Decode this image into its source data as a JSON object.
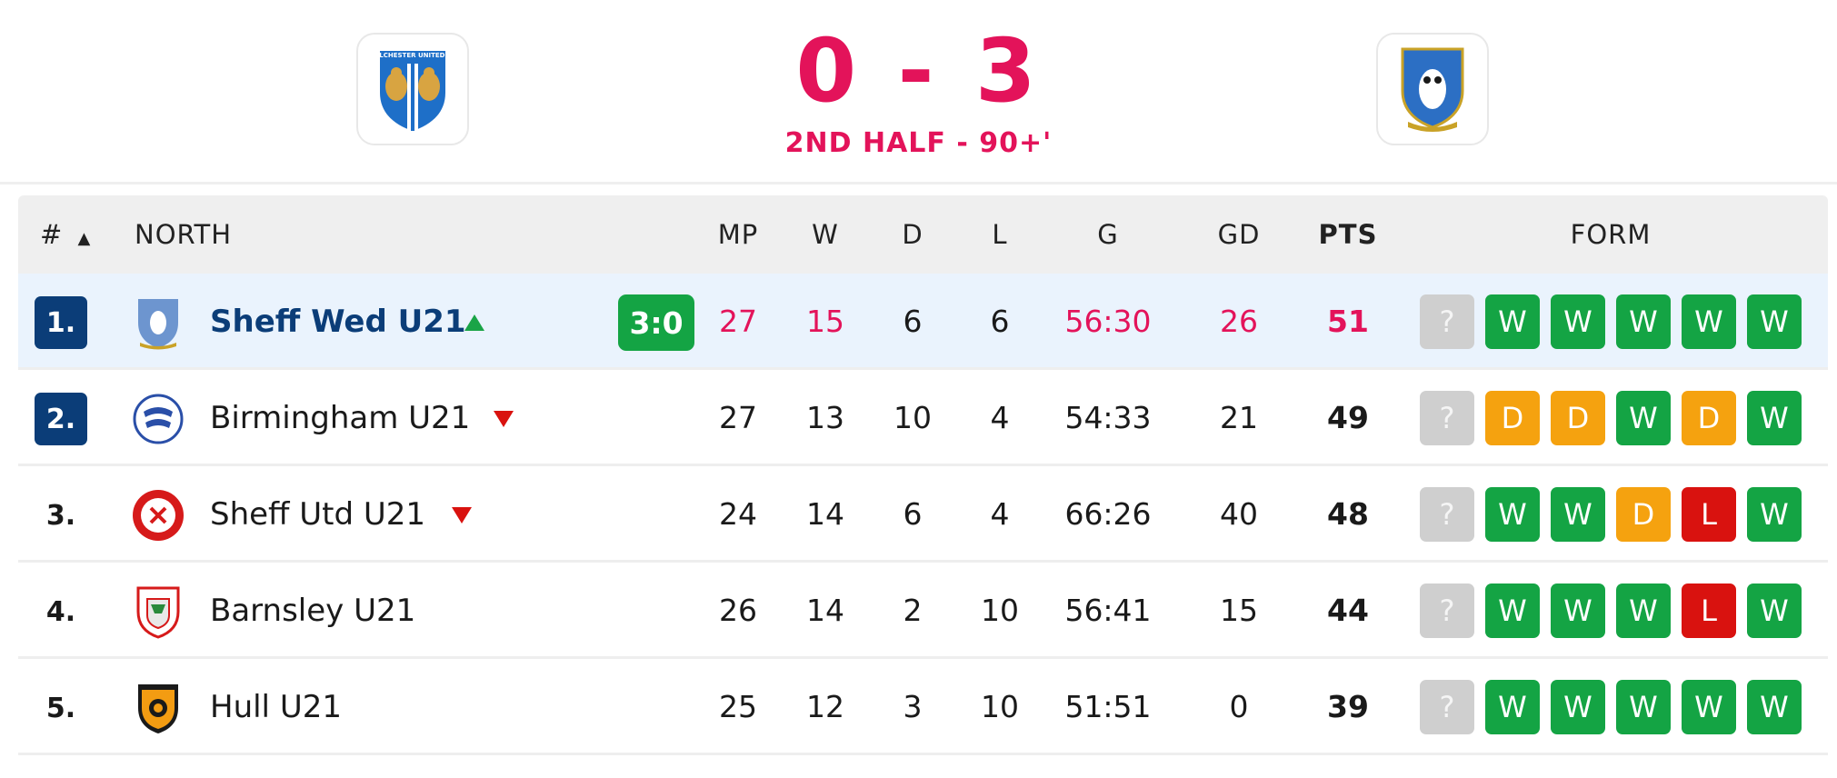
{
  "match": {
    "home_logo": "colchester-united-crest",
    "away_logo": "sheffield-wednesday-crest",
    "home_crest_text": "COLCHESTER UNITED FC",
    "score": "0 - 3",
    "status": "2ND HALF - 90+'"
  },
  "table": {
    "headers": {
      "rank": "#",
      "group": "NORTH",
      "mp": "MP",
      "w": "W",
      "d": "D",
      "l": "L",
      "g": "G",
      "gd": "GD",
      "pts": "PTS",
      "form": "FORM"
    },
    "rows": [
      {
        "rank": "1.",
        "team": "Sheff Wed U21",
        "live_score": "3:0",
        "mp": "27",
        "w": "15",
        "d": "6",
        "l": "6",
        "g": "56:30",
        "gd": "26",
        "pts": "51",
        "form": [
          "?",
          "W",
          "W",
          "W",
          "W",
          "W"
        ],
        "trend": "up"
      },
      {
        "rank": "2.",
        "team": "Birmingham U21",
        "mp": "27",
        "w": "13",
        "d": "10",
        "l": "4",
        "g": "54:33",
        "gd": "21",
        "pts": "49",
        "form": [
          "?",
          "D",
          "D",
          "W",
          "D",
          "W"
        ],
        "trend": "down"
      },
      {
        "rank": "3.",
        "team": "Sheff Utd U21",
        "mp": "24",
        "w": "14",
        "d": "6",
        "l": "4",
        "g": "66:26",
        "gd": "40",
        "pts": "48",
        "form": [
          "?",
          "W",
          "W",
          "D",
          "L",
          "W"
        ],
        "trend": "down"
      },
      {
        "rank": "4.",
        "team": "Barnsley U21",
        "mp": "26",
        "w": "14",
        "d": "2",
        "l": "10",
        "g": "56:41",
        "gd": "15",
        "pts": "44",
        "form": [
          "?",
          "W",
          "W",
          "W",
          "L",
          "W"
        ],
        "trend": "none"
      },
      {
        "rank": "5.",
        "team": "Hull U21",
        "mp": "25",
        "w": "12",
        "d": "3",
        "l": "10",
        "g": "51:51",
        "gd": "0",
        "pts": "39",
        "form": [
          "?",
          "W",
          "W",
          "W",
          "W",
          "W"
        ],
        "trend": "none"
      }
    ]
  },
  "colors": {
    "accent": "#e3135a",
    "promotion": "#0b3d78",
    "win": "#14a444",
    "draw": "#f5a20f",
    "loss": "#d9120f"
  }
}
